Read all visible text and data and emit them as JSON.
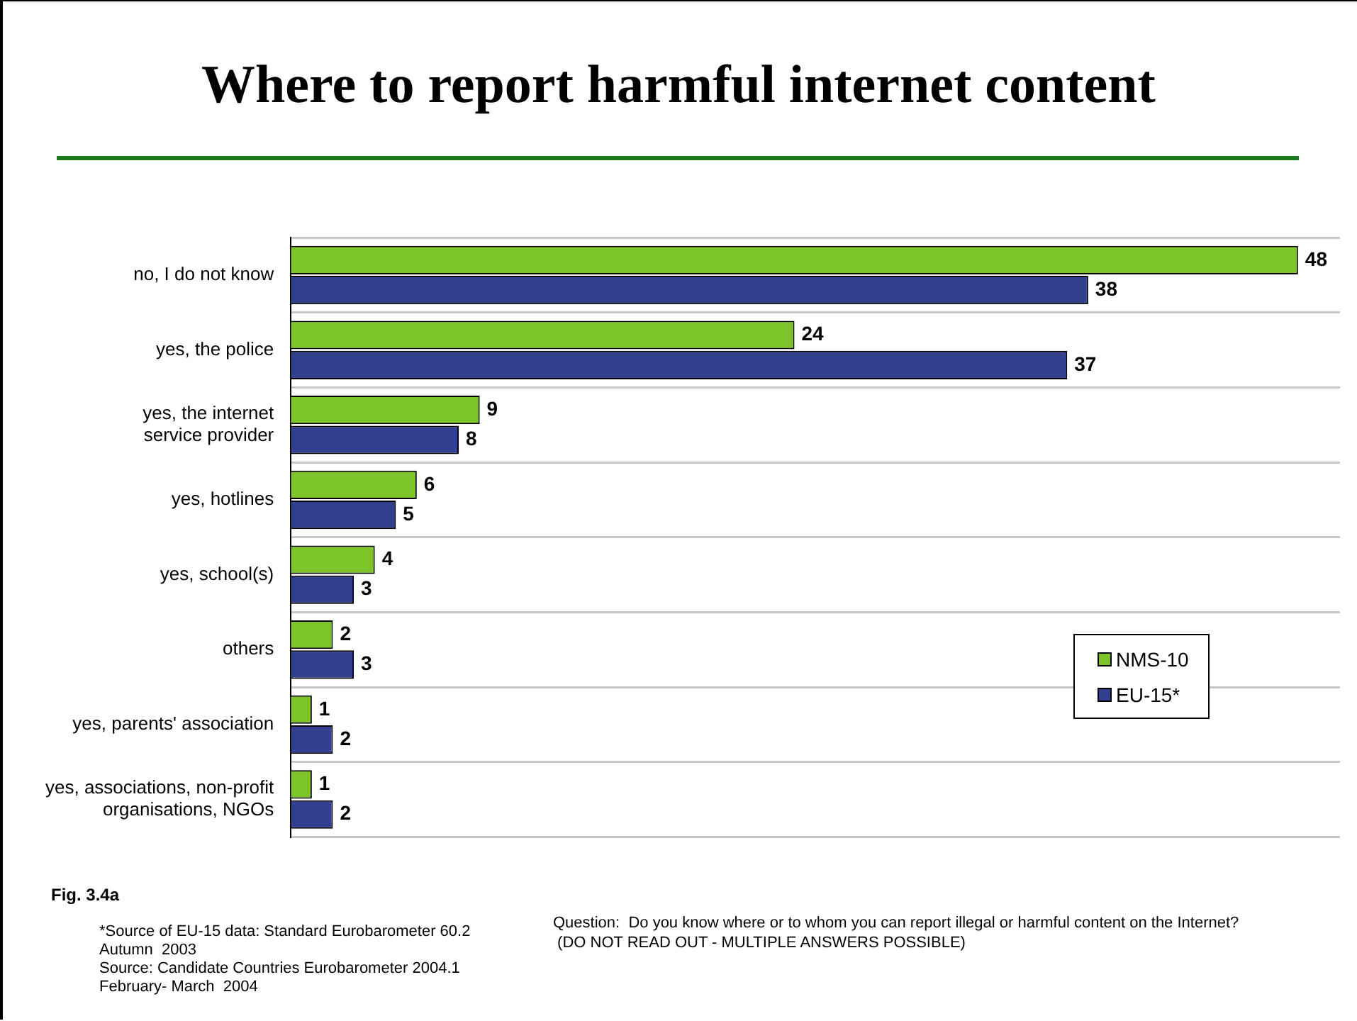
{
  "chart_data": {
    "type": "bar",
    "orientation": "horizontal",
    "title": "Where to report harmful internet content",
    "categories": [
      "no, I do not know",
      "yes, the police",
      "yes, the internet\nservice provider",
      "yes, hotlines",
      "yes, school(s)",
      "others",
      "yes, parents' association",
      "yes, associations, non-profit\norganisations, NGOs"
    ],
    "series": [
      {
        "name": "NMS-10",
        "color": "#7dc42b",
        "values": [
          48,
          24,
          9,
          6,
          4,
          2,
          1,
          1
        ]
      },
      {
        "name": "EU-15*",
        "color": "#333f8f",
        "values": [
          38,
          37,
          8,
          5,
          3,
          3,
          2,
          2
        ]
      }
    ],
    "xlim": [
      0,
      50
    ],
    "tick_labels": "y",
    "grid": "y",
    "legend": "bottom right",
    "data_labels": true,
    "annotations": [
      "Fig. 3.4a",
      "*Source of EU-15 data: Standard Eurobarometer 60.2\nAutumn  2003\nSource: Candidate Countries Eurobarometer 2004.1\nFebruary- March  2004",
      "Question:  Do you know where or to whom you can report illegal or harmful content on the Internet?\n (DO NOT READ OUT - MULTIPLE ANSWERS POSSIBLE)"
    ]
  }
}
